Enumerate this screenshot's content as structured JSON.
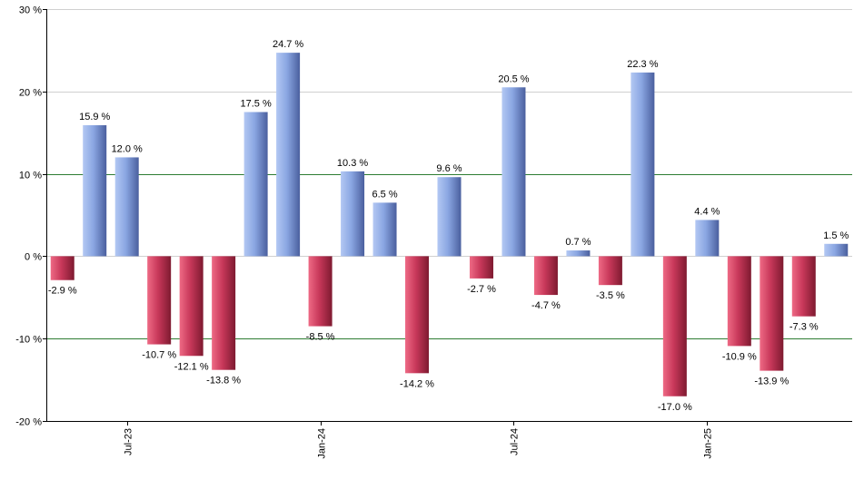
{
  "chart_data": {
    "type": "bar",
    "title": "",
    "xlabel": "",
    "ylabel": "",
    "ylim": [
      -20,
      30
    ],
    "y_ticks": [
      {
        "value": 30,
        "label": "30 %"
      },
      {
        "value": 20,
        "label": "20 %"
      },
      {
        "value": 10,
        "label": "10 %"
      },
      {
        "value": 0,
        "label": "0 %"
      },
      {
        "value": -10,
        "label": "-10 %"
      },
      {
        "value": -20,
        "label": "-20 %"
      }
    ],
    "values": [
      -2.9,
      15.9,
      12.0,
      -10.7,
      -12.1,
      -13.8,
      17.5,
      24.7,
      -8.5,
      10.3,
      6.5,
      -14.2,
      9.6,
      -2.7,
      20.5,
      -4.7,
      0.7,
      -3.5,
      22.3,
      -17.0,
      4.4,
      -10.9,
      -13.9,
      -7.3,
      1.5
    ],
    "value_labels": [
      "-2.9 %",
      "15.9 %",
      "12.0 %",
      "-10.7 %",
      "-12.1 %",
      "-13.8 %",
      "17.5 %",
      "24.7 %",
      "-8.5 %",
      "10.3 %",
      "6.5 %",
      "-14.2 %",
      "9.6 %",
      "-2.7 %",
      "20.5 %",
      "-4.7 %",
      "0.7 %",
      "-3.5 %",
      "22.3 %",
      "-17.0 %",
      "4.4 %",
      "-10.9 %",
      "-13.9 %",
      "-7.3 %",
      "1.5 %"
    ],
    "x_ticks": [
      {
        "index": 2,
        "label": "Jul-23"
      },
      {
        "index": 8,
        "label": "Jan-24"
      },
      {
        "index": 14,
        "label": "Jul-24"
      },
      {
        "index": 20,
        "label": "Jan-25"
      }
    ],
    "highlight_gridlines": [
      10,
      -10
    ],
    "colors": {
      "positive": "#7e9ad8",
      "positive_light": "#a9c0f0",
      "positive_dark": "#4b64a6",
      "negative": "#c33a58",
      "negative_light": "#e8647f",
      "negative_dark": "#8a1c33",
      "grid": "#d0d0d0",
      "grid_highlight": "#2e7d32",
      "axis": "#000000"
    }
  }
}
